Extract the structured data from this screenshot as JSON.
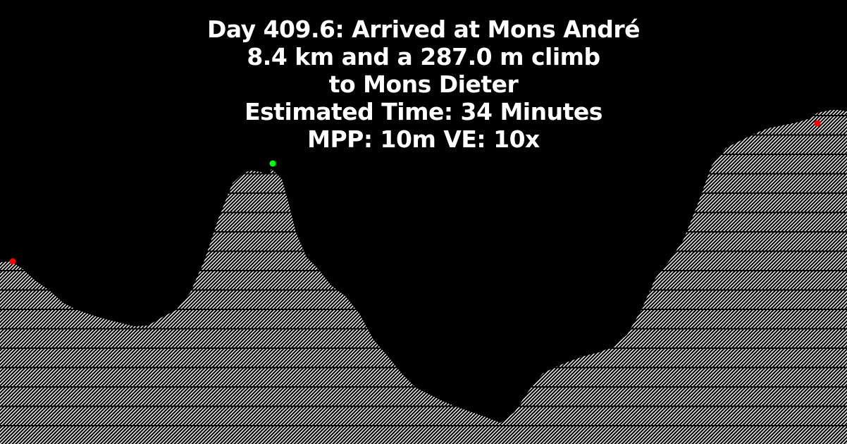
{
  "header": {
    "lines": [
      "Day 409.6: Arrived at Mons André",
      "8.4 km and a 287.0 m climb",
      "to Mons Dieter",
      "Estimated Time: 34 Minutes",
      "MPP: 10m VE: 10x"
    ]
  },
  "colors": {
    "background": "#000000",
    "text": "#ffffff",
    "hatch": "#ffffff",
    "hatch_gap": "#000000",
    "marker_current": "#00ff00",
    "marker_endpoint": "#ff0000"
  },
  "chart_data": {
    "type": "area",
    "title": "Day 409.6: Arrived at Mons André",
    "xlabel": "",
    "ylabel": "",
    "x_unit": "km",
    "y_unit": "m",
    "xlim": [
      0,
      12.02
    ],
    "ylim": [
      0,
      630
    ],
    "grid": false,
    "fill": "white diagonal hatch with horizontal black bands",
    "series": [
      {
        "x": [
          0,
          0.15,
          0.3,
          0.5,
          0.7,
          0.9,
          1.1,
          1.3,
          1.5,
          1.7,
          1.9,
          2.1,
          2.3,
          2.5,
          2.7,
          2.9,
          3.1,
          3.3,
          3.45,
          3.55,
          3.7,
          3.8,
          3.85,
          3.9,
          4.0,
          4.1,
          4.2,
          4.35,
          4.5,
          4.7,
          4.9,
          5.1,
          5.3,
          5.5,
          5.7,
          5.9,
          6.1,
          6.3,
          6.5,
          6.7,
          6.9,
          7.1,
          7.3,
          7.5,
          7.7,
          7.9,
          8.1,
          8.3,
          8.5,
          8.7,
          8.9,
          9.1,
          9.3,
          9.5,
          9.7,
          9.9,
          10.1,
          10.3,
          10.5,
          10.7,
          10.9,
          11.1,
          11.3,
          11.5,
          11.6,
          11.7,
          11.8,
          11.9,
          12.02
        ],
        "y": [
          258,
          259,
          250,
          232,
          218,
          200,
          190,
          183,
          177,
          172,
          167,
          168,
          180,
          190,
          215,
          260,
          320,
          370,
          384,
          388,
          386,
          382,
          390,
          386,
          376,
          340,
          300,
          265,
          250,
          225,
          210,
          185,
          148,
          125,
          100,
          80,
          70,
          60,
          52,
          45,
          38,
          30,
          45,
          75,
          100,
          110,
          118,
          125,
          130,
          138,
          155,
          190,
          235,
          260,
          290,
          340,
          395,
          420,
          430,
          440,
          448,
          452,
          456,
          462,
          470,
          472,
          474,
          474,
          472
        ]
      }
    ],
    "markers": [
      {
        "name": "Mons André",
        "x": 3.87,
        "y": 398,
        "color": "#00ff00"
      },
      {
        "name": "start",
        "x": 0.18,
        "y": 259,
        "color": "#ff0000"
      },
      {
        "name": "Mons Dieter",
        "x": 11.6,
        "y": 455,
        "color": "#ff0000"
      }
    ]
  }
}
